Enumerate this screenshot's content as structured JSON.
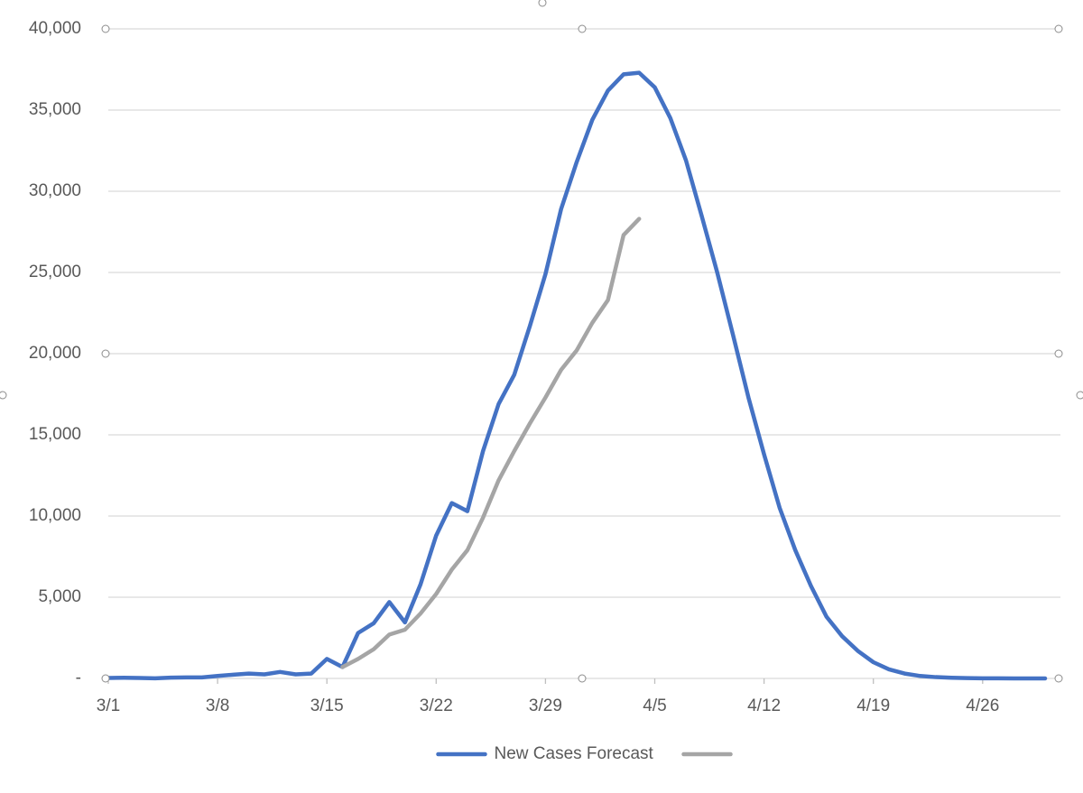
{
  "chart_data": {
    "type": "line",
    "categories": [
      "3/1",
      null,
      null,
      null,
      null,
      null,
      null,
      "3/8",
      null,
      null,
      null,
      null,
      null,
      null,
      "3/15",
      null,
      null,
      null,
      null,
      null,
      null,
      "3/22",
      null,
      null,
      null,
      null,
      null,
      null,
      "3/29",
      null,
      null,
      null,
      null,
      null,
      null,
      "4/5",
      null,
      null,
      null,
      null,
      null,
      null,
      "4/12",
      null,
      null,
      null,
      null,
      null,
      null,
      "4/19",
      null,
      null,
      null,
      null,
      null,
      null,
      "4/26",
      null,
      null,
      null,
      null
    ],
    "series": [
      {
        "name": "New Cases Forecast",
        "color": "#4472c4",
        "values": [
          30,
          40,
          30,
          10,
          50,
          60,
          60,
          150,
          230,
          300,
          250,
          400,
          250,
          300,
          1200,
          700,
          2800,
          3400,
          4700,
          3450,
          5800,
          8800,
          10800,
          10300,
          14000,
          16900,
          18700,
          21700,
          24900,
          28900,
          31800,
          34400,
          36200,
          37200,
          37300,
          36400,
          34500,
          31900,
          28500,
          25000,
          21200,
          17300,
          13800,
          10500,
          7900,
          5700,
          3800,
          2600,
          1700,
          1000,
          560,
          300,
          150,
          80,
          40,
          20,
          10,
          5,
          2,
          1,
          0
        ]
      },
      {
        "color": "#a5a5a5",
        "values": [
          null,
          null,
          null,
          null,
          null,
          null,
          null,
          null,
          null,
          null,
          null,
          null,
          null,
          null,
          null,
          700,
          1200,
          1800,
          2700,
          3000,
          4000,
          5200,
          6700,
          7900,
          9900,
          12200,
          14000,
          15700,
          17300,
          19000,
          20200,
          21900,
          23300,
          27300,
          28300,
          null,
          null,
          null,
          null,
          null,
          null,
          null,
          null,
          null,
          null,
          null,
          null,
          null,
          null,
          null,
          null,
          null,
          null,
          null,
          null,
          null,
          null,
          null,
          null,
          null,
          null
        ]
      }
    ],
    "ylim": [
      0,
      40000
    ],
    "yticks": [
      {
        "value": 0,
        "label": "-"
      },
      {
        "value": 5000,
        "label": "5,000"
      },
      {
        "value": 10000,
        "label": "10,000"
      },
      {
        "value": 15000,
        "label": "15,000"
      },
      {
        "value": 20000,
        "label": "20,000"
      },
      {
        "value": 25000,
        "label": "25,000"
      },
      {
        "value": 30000,
        "label": "30,000"
      },
      {
        "value": 35000,
        "label": "35,000"
      },
      {
        "value": 40000,
        "label": "40,000"
      }
    ],
    "grid": true,
    "legend": "bottom"
  }
}
